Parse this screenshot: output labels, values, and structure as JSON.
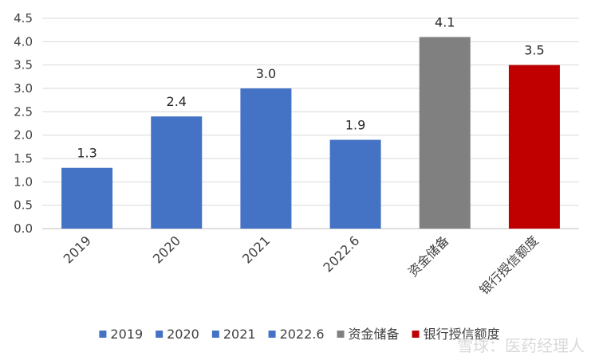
{
  "chart_data": {
    "type": "bar",
    "categories": [
      "2019",
      "2020",
      "2021",
      "2022.6",
      "资金储备",
      "银行授信额度"
    ],
    "values": [
      1.3,
      2.4,
      3.0,
      1.9,
      4.1,
      3.5
    ],
    "data_labels": [
      "1.3",
      "2.4",
      "3.0",
      "1.9",
      "4.1",
      "3.5"
    ],
    "colors": [
      "#4472C4",
      "#4472C4",
      "#4472C4",
      "#4472C4",
      "#808080",
      "#C00000"
    ],
    "ylim": [
      0,
      4.5
    ],
    "yticks": [
      "0.0",
      "0.5",
      "1.0",
      "1.5",
      "2.0",
      "2.5",
      "3.0",
      "3.5",
      "4.0",
      "4.5"
    ],
    "grid": true,
    "legend_position": "bottom",
    "legend": [
      "2019",
      "2020",
      "2021",
      "2022.6",
      "资金储备",
      "银行授信额度"
    ],
    "title": "",
    "xlabel": "",
    "ylabel": ""
  },
  "watermark": "雪球：医药经理人"
}
